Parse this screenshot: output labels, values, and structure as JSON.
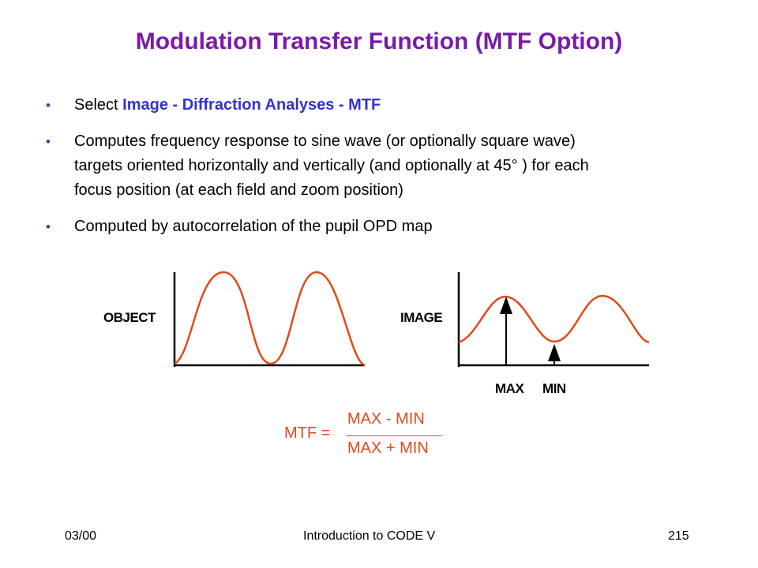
{
  "title": "Modulation Transfer Function (MTF Option)",
  "bullets": [
    {
      "prefix": "Select ",
      "highlight": "Image - Diffraction Analyses - MTF"
    },
    {
      "lines": [
        "Computes frequency response to sine wave (or optionally square wave)",
        "targets oriented horizontally and vertically (and optionally at 45°  ) for each",
        "focus position (at each field and zoom position)"
      ]
    },
    {
      "text": "Computed by autocorrelation of the pupil OPD map"
    }
  ],
  "diagram": {
    "object_label": "OBJECT",
    "image_label": "IMAGE",
    "max_label": "MAX",
    "min_label": "MIN",
    "curve_color": "#e04a1a"
  },
  "formula": {
    "lhs": "MTF =",
    "numerator": "MAX - MIN",
    "denominator": "MAX + MIN"
  },
  "footer": {
    "date": "03/00",
    "center": "Introduction to CODE V",
    "page": "215"
  }
}
